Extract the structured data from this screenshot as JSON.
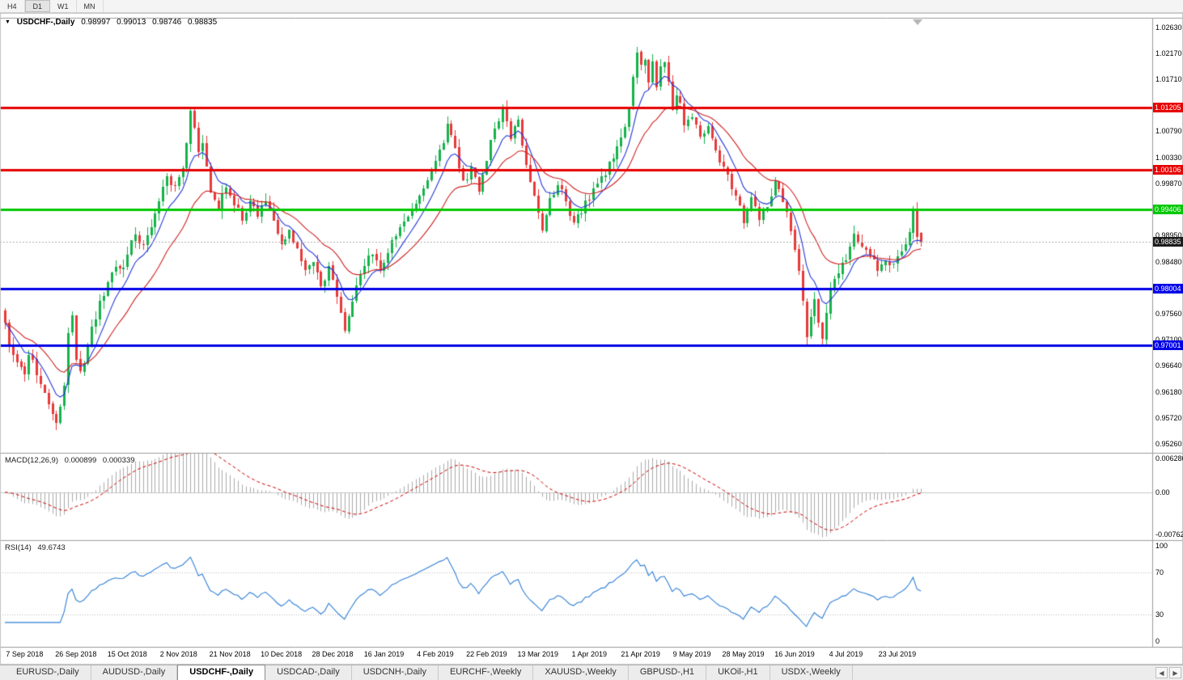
{
  "toolbar": {
    "timeframes": [
      "H4",
      "D1",
      "W1",
      "MN"
    ],
    "active": "D1"
  },
  "chart": {
    "title_marker": "▼",
    "symbol_label": "USDCHF-,Daily",
    "ohlc": {
      "open": "0.98997",
      "high": "0.99013",
      "low": "0.98746",
      "close": "0.98835"
    }
  },
  "indicators": {
    "macd": {
      "label": "MACD(12,26,9)",
      "value_main": "0.000899",
      "value_signal": "0.000339",
      "axis": [
        {
          "label": "0.006286",
          "value": 0.006286
        },
        {
          "label": "0.00",
          "value": 0
        },
        {
          "label": "-0.00762",
          "value": -0.00762
        }
      ]
    },
    "rsi": {
      "label": "RSI(14)",
      "value": "49.6743",
      "levels": [
        70,
        30
      ],
      "axis": [
        {
          "label": "100",
          "value": 100
        },
        {
          "label": "70",
          "value": 70
        },
        {
          "label": "30",
          "value": 30
        },
        {
          "label": "0",
          "value": 0
        }
      ]
    }
  },
  "chart_data": {
    "type": "candlestick",
    "symbol": "USDCHF",
    "timeframe": "Daily",
    "last_ohlc": {
      "open": 0.98997,
      "high": 0.99013,
      "low": 0.98746,
      "close": 0.98835
    },
    "candle_count": 233,
    "price_axis": {
      "max": 1.028,
      "min": 0.951
    },
    "macd_range": {
      "max": 0.0066,
      "min": -0.008
    },
    "ma_periods": [
      8,
      21
    ],
    "macd_params": {
      "fast": 12,
      "slow": 26,
      "signal": 9
    },
    "rsi_period": 14,
    "colors": {
      "up": "#16b24c",
      "down": "#e83a3a",
      "ma_fast": "#2438d8",
      "ma_slow": "#d02020",
      "macd_hist": "#aaaaaa",
      "macd_signal": "#cc0000",
      "rsi_line": "#2f7fd6",
      "panel_border": "#9b9b9b",
      "level_dotted": "#b8b8b8",
      "bid_line": "#b0b0b0"
    },
    "hlines": [
      {
        "price": 1.01205,
        "color": "#e60000",
        "width": 3
      },
      {
        "price": 1.00106,
        "color": "#e60000",
        "width": 3
      },
      {
        "price": 0.99406,
        "color": "#00c800",
        "width": 3
      },
      {
        "price": 0.98004,
        "color": "#0000e6",
        "width": 3
      },
      {
        "price": 0.97001,
        "color": "#0000e6",
        "width": 3
      }
    ],
    "price_badges": [
      {
        "label": "1.01205",
        "value": 1.01205,
        "color": "#e60000"
      },
      {
        "label": "1.00106",
        "value": 1.00106,
        "color": "#e60000"
      },
      {
        "label": "0.99406",
        "value": 0.99406,
        "color": "#00c800"
      },
      {
        "label": "0.98835",
        "value": 0.98835,
        "color": "#1c1c1c"
      },
      {
        "label": "0.98004",
        "value": 0.98004,
        "color": "#0000e6"
      },
      {
        "label": "0.97001",
        "value": 0.97001,
        "color": "#0000e6"
      }
    ],
    "y_ticks": [
      {
        "label": "1.02630",
        "value": 1.0263
      },
      {
        "label": "1.02170",
        "value": 1.0217
      },
      {
        "label": "1.01710",
        "value": 1.0171
      },
      {
        "label": "1.00790",
        "value": 1.0079
      },
      {
        "label": "1.00330",
        "value": 1.0033
      },
      {
        "label": "0.99870",
        "value": 0.9987
      },
      {
        "label": "0.98950",
        "value": 0.9895
      },
      {
        "label": "0.98480",
        "value": 0.9848
      },
      {
        "label": "0.97560",
        "value": 0.9756
      },
      {
        "label": "0.97100",
        "value": 0.971
      },
      {
        "label": "0.96640",
        "value": 0.9664
      },
      {
        "label": "0.96180",
        "value": 0.9618
      },
      {
        "label": "0.95720",
        "value": 0.9572
      },
      {
        "label": "0.95260",
        "value": 0.9526
      }
    ],
    "x_labels": [
      {
        "label": "7 Sep 2018",
        "i": 5
      },
      {
        "label": "26 Sep 2018",
        "i": 18
      },
      {
        "label": "15 Oct 2018",
        "i": 31
      },
      {
        "label": "2 Nov 2018",
        "i": 44
      },
      {
        "label": "21 Nov 2018",
        "i": 57
      },
      {
        "label": "10 Dec 2018",
        "i": 70
      },
      {
        "label": "28 Dec 2018",
        "i": 83
      },
      {
        "label": "16 Jan 2019",
        "i": 96
      },
      {
        "label": "4 Feb 2019",
        "i": 109
      },
      {
        "label": "22 Feb 2019",
        "i": 122
      },
      {
        "label": "13 Mar 2019",
        "i": 135
      },
      {
        "label": "1 Apr 2019",
        "i": 148
      },
      {
        "label": "21 Apr 2019",
        "i": 161
      },
      {
        "label": "9 May 2019",
        "i": 174
      },
      {
        "label": "28 May 2019",
        "i": 187
      },
      {
        "label": "16 Jun 2019",
        "i": 200
      },
      {
        "label": "4 Jul 2019",
        "i": 213
      },
      {
        "label": "23 Jul 2019",
        "i": 226
      }
    ],
    "price_path": [
      [
        0,
        0.9742
      ],
      [
        1,
        0.9706
      ],
      [
        3,
        0.9668
      ],
      [
        5,
        0.9655
      ],
      [
        6,
        0.9684
      ],
      [
        8,
        0.9652
      ],
      [
        10,
        0.962
      ],
      [
        12,
        0.9578
      ],
      [
        13,
        0.9565
      ],
      [
        14,
        0.9588
      ],
      [
        15,
        0.9625
      ],
      [
        16,
        0.9718
      ],
      [
        17,
        0.9755
      ],
      [
        18,
        0.9682
      ],
      [
        19,
        0.9656
      ],
      [
        20,
        0.9672
      ],
      [
        22,
        0.973
      ],
      [
        24,
        0.9775
      ],
      [
        26,
        0.9815
      ],
      [
        28,
        0.9843
      ],
      [
        30,
        0.9838
      ],
      [
        31,
        0.9868
      ],
      [
        33,
        0.9903
      ],
      [
        35,
        0.9872
      ],
      [
        37,
        0.9908
      ],
      [
        39,
        0.9958
      ],
      [
        41,
        1.0002
      ],
      [
        43,
        0.9976
      ],
      [
        45,
        1.0012
      ],
      [
        46,
        1.0056
      ],
      [
        47,
        1.0118
      ],
      [
        48,
        1.0088
      ],
      [
        49,
        1.0042
      ],
      [
        50,
        1.0064
      ],
      [
        51,
        1.0012
      ],
      [
        52,
        0.9976
      ],
      [
        54,
        0.9946
      ],
      [
        56,
        0.9984
      ],
      [
        58,
        0.995
      ],
      [
        60,
        0.9926
      ],
      [
        62,
        0.9954
      ],
      [
        64,
        0.9934
      ],
      [
        66,
        0.9954
      ],
      [
        68,
        0.9916
      ],
      [
        70,
        0.9886
      ],
      [
        72,
        0.9904
      ],
      [
        74,
        0.9866
      ],
      [
        76,
        0.9832
      ],
      [
        78,
        0.9854
      ],
      [
        80,
        0.9806
      ],
      [
        82,
        0.9838
      ],
      [
        83,
        0.9812
      ],
      [
        85,
        0.9762
      ],
      [
        86,
        0.9722
      ],
      [
        87,
        0.9752
      ],
      [
        89,
        0.98
      ],
      [
        91,
        0.9844
      ],
      [
        93,
        0.9862
      ],
      [
        95,
        0.9832
      ],
      [
        96,
        0.9854
      ],
      [
        98,
        0.988
      ],
      [
        100,
        0.991
      ],
      [
        102,
        0.9934
      ],
      [
        104,
        0.9956
      ],
      [
        106,
        0.9984
      ],
      [
        108,
        1.0002
      ],
      [
        110,
        1.004
      ],
      [
        112,
        1.0086
      ],
      [
        114,
        1.0052
      ],
      [
        116,
        0.9988
      ],
      [
        118,
        1.0012
      ],
      [
        120,
        0.9972
      ],
      [
        122,
        1.0028
      ],
      [
        124,
        1.0086
      ],
      [
        126,
        1.0118
      ],
      [
        128,
        1.0072
      ],
      [
        130,
        1.0098
      ],
      [
        132,
        1.0022
      ],
      [
        134,
        0.9962
      ],
      [
        135,
        0.9932
      ],
      [
        136,
        0.9906
      ],
      [
        138,
        0.9958
      ],
      [
        140,
        0.9988
      ],
      [
        142,
        0.995
      ],
      [
        144,
        0.9912
      ],
      [
        146,
        0.994
      ],
      [
        148,
        0.9962
      ],
      [
        150,
        0.9988
      ],
      [
        152,
        1.0006
      ],
      [
        154,
        1.0036
      ],
      [
        156,
        1.0062
      ],
      [
        158,
        1.0118
      ],
      [
        159,
        1.0178
      ],
      [
        160,
        1.0222
      ],
      [
        161,
        1.0192
      ],
      [
        162,
        1.021
      ],
      [
        163,
        1.0172
      ],
      [
        164,
        1.0198
      ],
      [
        165,
        1.0156
      ],
      [
        166,
        1.0188
      ],
      [
        167,
        1.0206
      ],
      [
        168,
        1.0162
      ],
      [
        169,
        1.0122
      ],
      [
        170,
        1.0148
      ],
      [
        171,
        1.0128
      ],
      [
        172,
        1.0092
      ],
      [
        174,
        1.0108
      ],
      [
        176,
        1.0072
      ],
      [
        178,
        1.0088
      ],
      [
        180,
        1.0042
      ],
      [
        182,
        1.0012
      ],
      [
        184,
        0.9982
      ],
      [
        186,
        0.9952
      ],
      [
        187,
        0.9922
      ],
      [
        189,
        0.9962
      ],
      [
        191,
        0.9918
      ],
      [
        193,
        0.9948
      ],
      [
        195,
        0.9992
      ],
      [
        197,
        0.9958
      ],
      [
        199,
        0.9902
      ],
      [
        200,
        0.9872
      ],
      [
        202,
        0.9782
      ],
      [
        203,
        0.9722
      ],
      [
        204,
        0.9758
      ],
      [
        205,
        0.9786
      ],
      [
        206,
        0.9744
      ],
      [
        207,
        0.9712
      ],
      [
        208,
        0.9752
      ],
      [
        209,
        0.9798
      ],
      [
        211,
        0.9828
      ],
      [
        213,
        0.9856
      ],
      [
        215,
        0.9894
      ],
      [
        217,
        0.9874
      ],
      [
        219,
        0.9854
      ],
      [
        221,
        0.9836
      ],
      [
        223,
        0.985
      ],
      [
        225,
        0.9842
      ],
      [
        227,
        0.9862
      ],
      [
        229,
        0.9896
      ],
      [
        230,
        0.9935
      ],
      [
        231,
        0.9888
      ],
      [
        232,
        0.98835
      ]
    ]
  },
  "tabs": {
    "items": [
      {
        "label": "EURUSD-,Daily",
        "active": false
      },
      {
        "label": "AUDUSD-,Daily",
        "active": false
      },
      {
        "label": "USDCHF-,Daily",
        "active": true
      },
      {
        "label": "USDCAD-,Daily",
        "active": false
      },
      {
        "label": "USDCNH-,Daily",
        "active": false
      },
      {
        "label": "EURCHF-,Weekly",
        "active": false
      },
      {
        "label": "XAUUSD-,Weekly",
        "active": false
      },
      {
        "label": "GBPUSD-,H1",
        "active": false
      },
      {
        "label": "UKOil-,H1",
        "active": false
      },
      {
        "label": "USDX-,Weekly",
        "active": false
      }
    ],
    "scroll_left_icon": "◀",
    "scroll_right_icon": "▶"
  }
}
